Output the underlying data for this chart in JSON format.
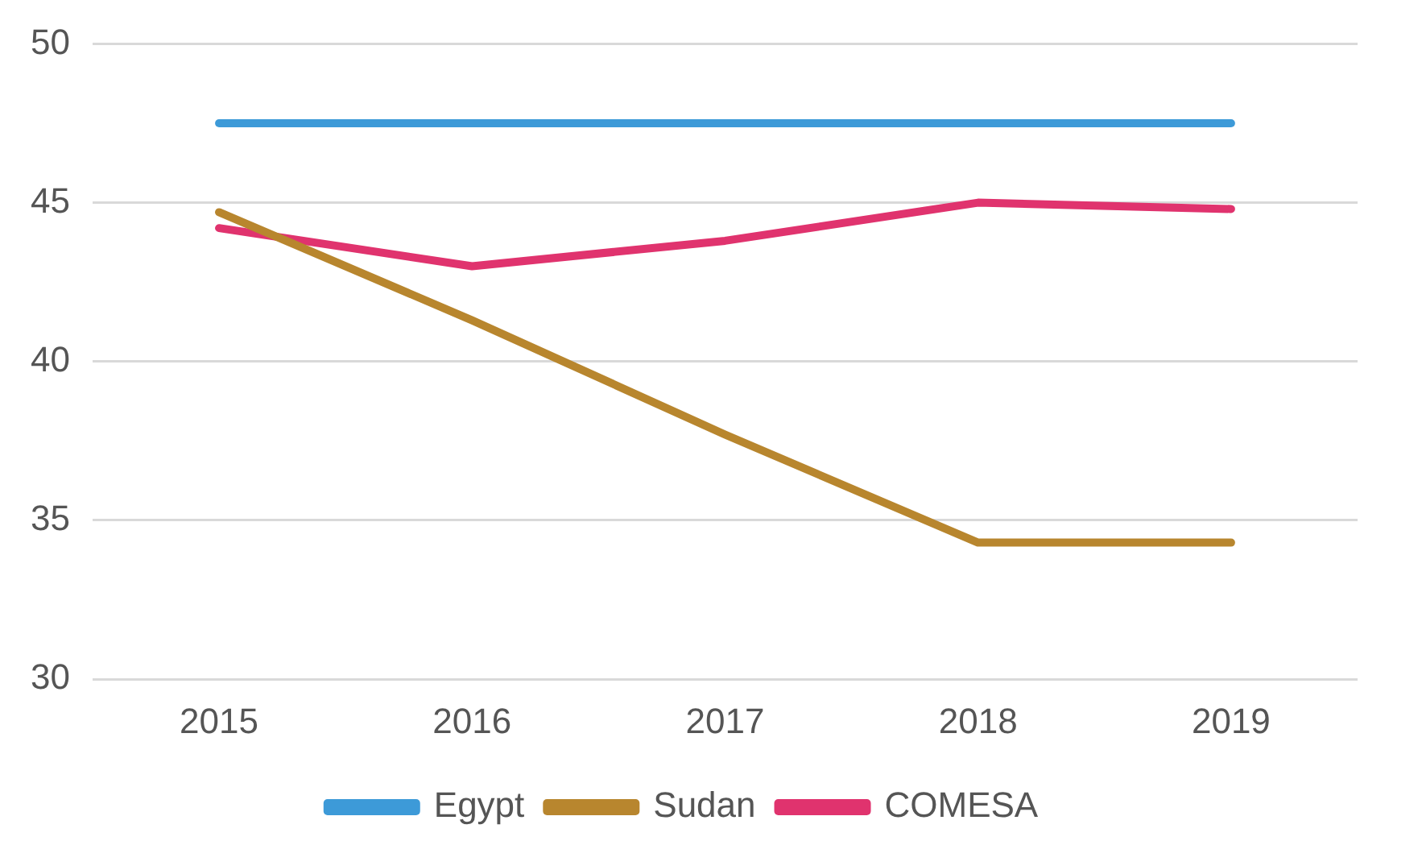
{
  "chart_data": {
    "type": "line",
    "categories": [
      "2015",
      "2016",
      "2017",
      "2018",
      "2019"
    ],
    "series": [
      {
        "name": "Egypt",
        "color": "#3d9ad8",
        "values": [
          47.5,
          47.5,
          47.5,
          47.5,
          47.5
        ]
      },
      {
        "name": "Sudan",
        "color": "#b8862e",
        "values": [
          44.7,
          41.3,
          37.7,
          34.3,
          34.3
        ]
      },
      {
        "name": "COMESA",
        "color": "#e0336e",
        "values": [
          44.2,
          43.0,
          43.8,
          45.0,
          44.8
        ]
      }
    ],
    "ylim": [
      30,
      50
    ],
    "yticks": [
      30,
      35,
      40,
      45,
      50
    ],
    "grid": "y",
    "legend": "bottom",
    "marker": "none",
    "line_style": "solid"
  }
}
